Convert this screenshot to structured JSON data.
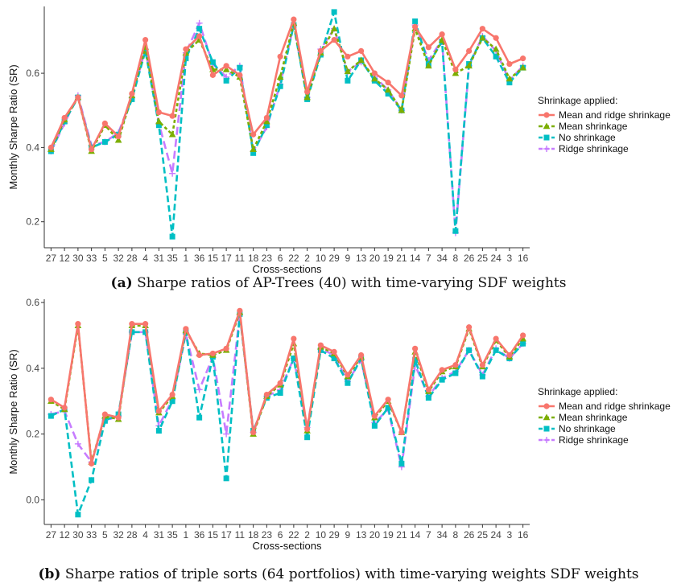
{
  "series_colors": {
    "Mean and ridge shrinkage": "#f8766d",
    "Mean shrinkage": "#7cae00",
    "No shrinkage": "#00bfc4",
    "Ridge shrinkage": "#c77cff"
  },
  "legend": {
    "title": "Shrinkage applied:",
    "items": [
      "Mean and ridge shrinkage",
      "Mean shrinkage",
      "No shrinkage",
      "Ridge shrinkage"
    ]
  },
  "chart_data": [
    {
      "type": "line",
      "caption_label": "(a)",
      "caption_text": "Sharpe ratios of AP-Trees (40) with time-varying SDF weights",
      "xlabel": "Cross-sections",
      "ylabel": "Monthly Sharpe Ratio (SR)",
      "ylim": [
        0.13,
        0.78
      ],
      "yticks": [
        0.2,
        0.4,
        0.6
      ],
      "categories": [
        "27",
        "12",
        "30",
        "33",
        "5",
        "32",
        "28",
        "4",
        "31",
        "35",
        "1",
        "36",
        "15",
        "17",
        "11",
        "18",
        "23",
        "6",
        "22",
        "2",
        "10",
        "29",
        "9",
        "13",
        "20",
        "19",
        "21",
        "14",
        "7",
        "34",
        "8",
        "26",
        "25",
        "24",
        "3",
        "16"
      ],
      "series": [
        {
          "name": "Mean and ridge shrinkage",
          "values": [
            0.4,
            0.48,
            0.535,
            0.395,
            0.465,
            0.43,
            0.545,
            0.69,
            0.495,
            0.485,
            0.665,
            0.7,
            0.595,
            0.62,
            0.595,
            0.435,
            0.48,
            0.645,
            0.745,
            0.55,
            0.66,
            0.69,
            0.645,
            0.66,
            0.6,
            0.575,
            0.54,
            0.725,
            0.67,
            0.705,
            0.61,
            0.66,
            0.72,
            0.695,
            0.625,
            0.64
          ]
        },
        {
          "name": "Mean shrinkage",
          "values": [
            0.395,
            0.475,
            0.535,
            0.39,
            0.46,
            0.42,
            0.54,
            0.67,
            0.47,
            0.435,
            0.655,
            0.69,
            0.61,
            0.61,
            0.59,
            0.395,
            0.47,
            0.59,
            0.735,
            0.535,
            0.655,
            0.72,
            0.605,
            0.635,
            0.585,
            0.555,
            0.5,
            0.72,
            0.62,
            0.69,
            0.6,
            0.62,
            0.695,
            0.665,
            0.585,
            0.615
          ]
        },
        {
          "name": "No shrinkage",
          "values": [
            0.39,
            0.47,
            0.535,
            0.4,
            0.415,
            0.435,
            0.53,
            0.66,
            0.46,
            0.16,
            0.64,
            0.72,
            0.63,
            0.58,
            0.615,
            0.385,
            0.46,
            0.565,
            0.73,
            0.53,
            0.65,
            0.765,
            0.58,
            0.635,
            0.58,
            0.545,
            0.5,
            0.74,
            0.625,
            0.685,
            0.175,
            0.625,
            0.695,
            0.645,
            0.575,
            0.615
          ]
        },
        {
          "name": "Ridge shrinkage",
          "values": [
            0.39,
            0.465,
            0.54,
            0.405,
            0.415,
            0.44,
            0.535,
            0.665,
            0.465,
            0.33,
            0.655,
            0.735,
            0.625,
            0.59,
            0.62,
            0.39,
            0.455,
            0.57,
            0.73,
            0.535,
            0.665,
            0.72,
            0.605,
            0.63,
            0.59,
            0.555,
            0.5,
            0.73,
            0.635,
            0.69,
            0.17,
            0.62,
            0.7,
            0.66,
            0.58,
            0.62
          ]
        }
      ]
    },
    {
      "type": "line",
      "caption_label": "(b)",
      "caption_text": "Sharpe ratios of triple sorts (64 portfolios) with time-varying weights SDF weights",
      "xlabel": "Cross-sections",
      "ylabel": "Monthly Sharpe Ratio (SR)",
      "ylim": [
        -0.075,
        0.61
      ],
      "yticks": [
        0.0,
        0.2,
        0.4,
        0.6
      ],
      "categories": [
        "27",
        "12",
        "30",
        "33",
        "5",
        "32",
        "28",
        "4",
        "31",
        "35",
        "1",
        "36",
        "15",
        "17",
        "11",
        "18",
        "23",
        "6",
        "22",
        "2",
        "10",
        "29",
        "9",
        "13",
        "20",
        "19",
        "21",
        "14",
        "7",
        "34",
        "8",
        "26",
        "25",
        "24",
        "3",
        "16"
      ],
      "series": [
        {
          "name": "Mean and ridge shrinkage",
          "values": [
            0.305,
            0.28,
            0.535,
            0.11,
            0.26,
            0.25,
            0.535,
            0.535,
            0.27,
            0.32,
            0.52,
            0.44,
            0.445,
            0.46,
            0.575,
            0.205,
            0.32,
            0.355,
            0.49,
            0.215,
            0.47,
            0.45,
            0.38,
            0.44,
            0.255,
            0.305,
            0.205,
            0.46,
            0.335,
            0.395,
            0.41,
            0.525,
            0.41,
            0.49,
            0.44,
            0.5
          ]
        },
        {
          "name": "Mean shrinkage",
          "values": [
            0.3,
            0.275,
            0.53,
            0.115,
            0.255,
            0.245,
            0.53,
            0.53,
            0.265,
            0.315,
            0.515,
            0.445,
            0.44,
            0.455,
            0.57,
            0.2,
            0.315,
            0.35,
            0.475,
            0.21,
            0.465,
            0.445,
            0.375,
            0.435,
            0.25,
            0.3,
            0.205,
            0.45,
            0.33,
            0.39,
            0.405,
            0.52,
            0.405,
            0.485,
            0.435,
            0.49
          ]
        },
        {
          "name": "No shrinkage",
          "values": [
            0.255,
            0.275,
            -0.045,
            0.06,
            0.24,
            0.26,
            0.51,
            0.51,
            0.21,
            0.3,
            0.51,
            0.25,
            0.435,
            0.065,
            0.565,
            0.21,
            0.31,
            0.325,
            0.43,
            0.19,
            0.455,
            0.43,
            0.355,
            0.43,
            0.225,
            0.28,
            0.11,
            0.425,
            0.31,
            0.365,
            0.385,
            0.455,
            0.375,
            0.455,
            0.43,
            0.475
          ]
        },
        {
          "name": "Ridge shrinkage",
          "values": [
            0.26,
            0.27,
            0.17,
            0.115,
            0.24,
            0.255,
            0.51,
            0.51,
            0.225,
            0.305,
            0.505,
            0.335,
            0.435,
            0.2,
            0.565,
            0.205,
            0.315,
            0.335,
            0.43,
            0.22,
            0.46,
            0.44,
            0.36,
            0.425,
            0.235,
            0.275,
            0.1,
            0.41,
            0.315,
            0.37,
            0.39,
            0.455,
            0.38,
            0.46,
            0.43,
            0.475
          ]
        }
      ]
    }
  ]
}
